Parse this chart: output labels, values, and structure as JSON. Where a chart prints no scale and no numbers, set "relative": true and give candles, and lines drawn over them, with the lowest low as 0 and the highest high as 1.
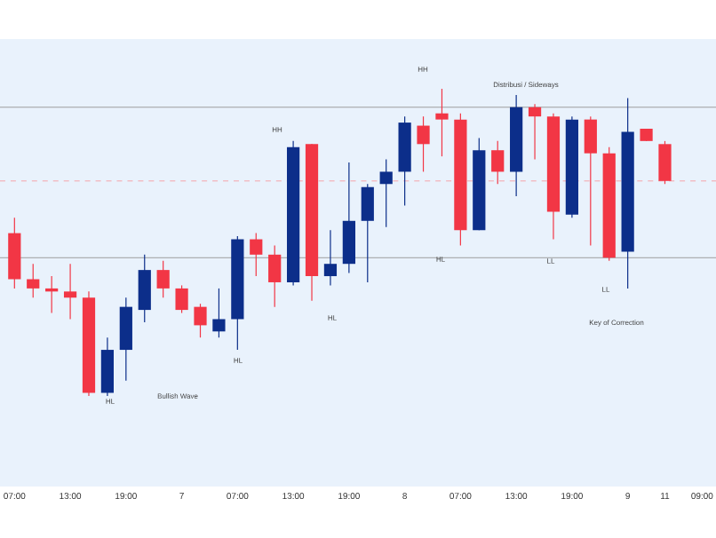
{
  "chart_data": {
    "type": "candlestick",
    "relative": true,
    "categories": [
      "07:00",
      null,
      null,
      "13:00",
      null,
      null,
      "19:00",
      null,
      null,
      "7",
      null,
      null,
      "07:00",
      null,
      null,
      "13:00",
      null,
      null,
      "19:00",
      null,
      null,
      "8",
      null,
      null,
      "07:00",
      null,
      null,
      "13:00",
      null,
      null,
      "19:00",
      null,
      null,
      "9",
      null,
      "11",
      null,
      "09:00"
    ],
    "ohlc": [
      [
        0.53,
        0.58,
        0.35,
        0.38
      ],
      [
        0.38,
        0.43,
        0.32,
        0.35
      ],
      [
        0.35,
        0.39,
        0.27,
        0.34
      ],
      [
        0.34,
        0.43,
        0.25,
        0.32
      ],
      [
        0.32,
        0.34,
        0.0,
        0.01
      ],
      [
        0.01,
        0.19,
        0.0,
        0.15
      ],
      [
        0.15,
        0.32,
        0.05,
        0.29
      ],
      [
        0.28,
        0.46,
        0.24,
        0.41
      ],
      [
        0.41,
        0.44,
        0.32,
        0.35
      ],
      [
        0.35,
        0.36,
        0.27,
        0.28
      ],
      [
        0.29,
        0.3,
        0.19,
        0.23
      ],
      [
        0.21,
        0.35,
        0.19,
        0.25
      ],
      [
        0.25,
        0.52,
        0.15,
        0.51
      ],
      [
        0.51,
        0.53,
        0.39,
        0.46
      ],
      [
        0.46,
        0.49,
        0.29,
        0.37
      ],
      [
        0.37,
        0.83,
        0.36,
        0.81
      ],
      [
        0.82,
        0.82,
        0.31,
        0.39
      ],
      [
        0.39,
        0.54,
        0.36,
        0.43
      ],
      [
        0.43,
        0.76,
        0.4,
        0.57
      ],
      [
        0.57,
        0.69,
        0.37,
        0.68
      ],
      [
        0.69,
        0.77,
        0.55,
        0.73
      ],
      [
        0.73,
        0.91,
        0.62,
        0.89
      ],
      [
        0.88,
        0.91,
        0.73,
        0.82
      ],
      [
        0.92,
        1.0,
        0.78,
        0.9
      ],
      [
        0.9,
        0.92,
        0.49,
        0.54
      ],
      [
        0.54,
        0.84,
        0.54,
        0.8
      ],
      [
        0.8,
        0.83,
        0.69,
        0.73
      ],
      [
        0.73,
        0.98,
        0.65,
        0.94
      ],
      [
        0.94,
        0.95,
        0.77,
        0.91
      ],
      [
        0.91,
        0.92,
        0.51,
        0.6
      ],
      [
        0.59,
        0.91,
        0.58,
        0.9
      ],
      [
        0.9,
        0.91,
        0.49,
        0.79
      ],
      [
        0.79,
        0.81,
        0.44,
        0.45
      ],
      [
        0.47,
        0.97,
        0.35,
        0.86
      ],
      [
        0.87,
        0.87,
        0.83,
        0.83
      ],
      [
        0.82,
        0.83,
        0.69,
        0.7
      ],
      null,
      null
    ],
    "colors": [
      "#f23645",
      "#f23645",
      "#f23645",
      "#f23645",
      "#f23645",
      "#0c2e8a",
      "#0c2e8a",
      "#0c2e8a",
      "#f23645",
      "#f23645",
      "#f23645",
      "#0c2e8a",
      "#0c2e8a",
      "#f23645",
      "#f23645",
      "#0c2e8a",
      "#f23645",
      "#0c2e8a",
      "#0c2e8a",
      "#0c2e8a",
      "#0c2e8a",
      "#0c2e8a",
      "#f23645",
      "#f23645",
      "#f23645",
      "#0c2e8a",
      "#f23645",
      "#0c2e8a",
      "#f23645",
      "#f23645",
      "#0c2e8a",
      "#f23645",
      "#f23645",
      "#0c2e8a",
      "#f23645",
      "#f23645",
      null,
      null
    ],
    "ref_lines": [
      {
        "axis": "y",
        "value": 0.94,
        "color": "#9e9e9e"
      },
      {
        "axis": "y",
        "value": 0.7,
        "color": "#f5a3ab",
        "line_style": "dashed"
      },
      {
        "axis": "y",
        "value": 0.45,
        "color": "#9e9e9e"
      }
    ],
    "annotations": [
      "HH",
      "HH",
      "HL",
      "HL",
      "HL",
      "HL",
      "LL",
      "LL",
      "Bullish Wave",
      "Distribusi / Sideways",
      "Key of Correction"
    ]
  }
}
